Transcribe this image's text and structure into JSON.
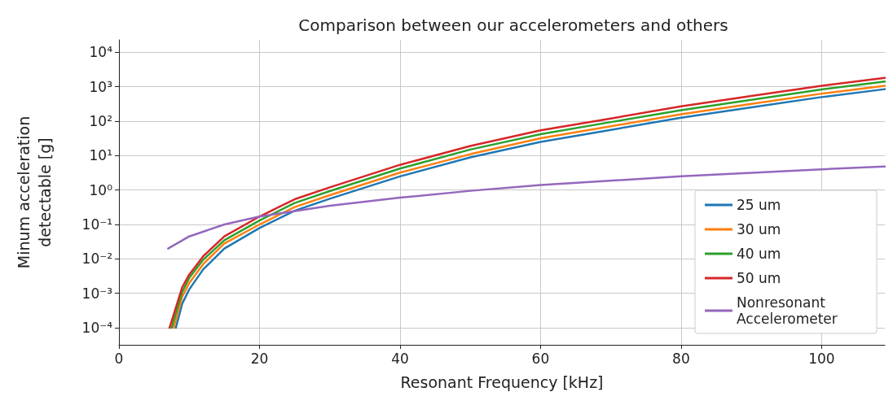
{
  "chart_data": {
    "type": "line",
    "title": "Comparison between our accelerometers and others",
    "xlabel": "Resonant Frequency [kHz]",
    "ylabel": "Minum acceleration\ndetectable [g]",
    "log": "y",
    "grid": true,
    "legend": "bottom right",
    "marker": "none",
    "line_style": "solid",
    "xlim": [
      0,
      109
    ],
    "xticks": [
      0,
      20,
      40,
      60,
      80,
      100
    ],
    "ylim": [
      3.2e-05,
      23000
    ],
    "yticks": [
      {
        "value": 0.0001,
        "label": "10⁻⁴"
      },
      {
        "value": 0.001,
        "label": "10⁻³"
      },
      {
        "value": 0.01,
        "label": "10⁻²"
      },
      {
        "value": 0.1,
        "label": "10⁻¹"
      },
      {
        "value": 1,
        "label": "10⁰"
      },
      {
        "value": 10,
        "label": "10¹"
      },
      {
        "value": 100,
        "label": "10²"
      },
      {
        "value": 1000,
        "label": "10³"
      },
      {
        "value": 10000,
        "label": "10⁴"
      }
    ],
    "series": [
      {
        "name": "25 um",
        "color": "#1f77b4",
        "x": [
          8.1,
          9,
          10,
          12,
          15,
          20,
          25,
          30,
          40,
          50,
          60,
          70,
          80,
          90,
          100,
          109
        ],
        "values": [
          0.0001,
          0.0005,
          0.0013,
          0.005,
          0.02,
          0.079,
          0.25,
          0.56,
          2.5,
          8.9,
          25,
          56,
          126,
          251,
          501,
          851
        ]
      },
      {
        "name": "30 um",
        "color": "#ff7f0e",
        "x": [
          7.8,
          9,
          10,
          12,
          15,
          20,
          25,
          30,
          40,
          50,
          60,
          70,
          80,
          90,
          100,
          109
        ],
        "values": [
          0.0001,
          0.0008,
          0.002,
          0.0071,
          0.028,
          0.1,
          0.32,
          0.71,
          3.2,
          11,
          32,
          71,
          158,
          316,
          631,
          1070
        ]
      },
      {
        "name": "40 um",
        "color": "#2ca02c",
        "x": [
          7.5,
          9,
          10,
          12,
          15,
          20,
          25,
          30,
          40,
          50,
          60,
          70,
          80,
          90,
          100,
          109
        ],
        "values": [
          0.0001,
          0.0011,
          0.0028,
          0.0095,
          0.035,
          0.13,
          0.42,
          0.93,
          4.2,
          15,
          42,
          94,
          209,
          417,
          832,
          1410
        ]
      },
      {
        "name": "50 um",
        "color": "#d62728",
        "x": [
          7.2,
          9,
          10,
          12,
          15,
          20,
          25,
          30,
          40,
          50,
          60,
          70,
          80,
          90,
          100,
          109
        ],
        "values": [
          0.0001,
          0.0015,
          0.0035,
          0.012,
          0.045,
          0.17,
          0.54,
          1.2,
          5.4,
          19,
          54,
          120,
          270,
          540,
          1070,
          1810
        ]
      },
      {
        "name": "Nonresonant Accelerometer",
        "color": "#9467bd",
        "x": [
          7,
          10,
          15,
          20,
          30,
          40,
          50,
          60,
          80,
          100,
          109
        ],
        "values": [
          0.02,
          0.045,
          0.1,
          0.17,
          0.35,
          0.6,
          0.95,
          1.4,
          2.5,
          4,
          4.8
        ]
      }
    ]
  }
}
